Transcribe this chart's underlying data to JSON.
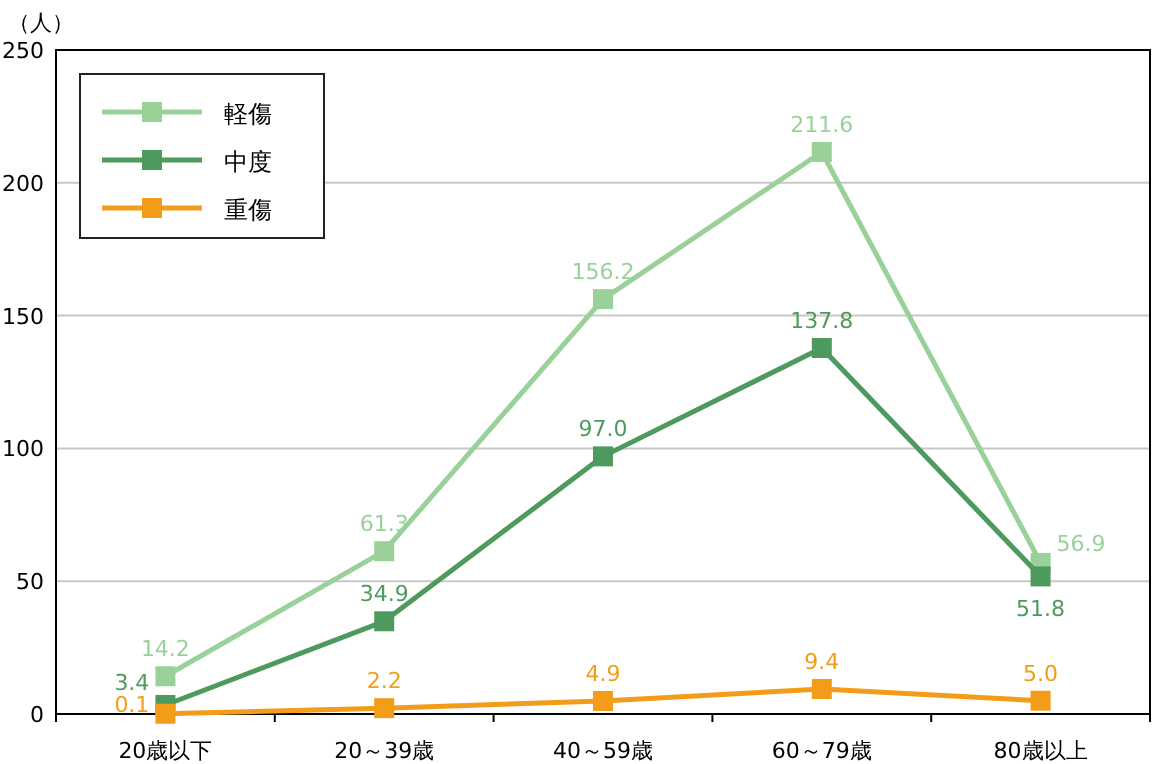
{
  "chart_data": {
    "type": "line",
    "ylabel": "（人）",
    "categories": [
      "20歳以下",
      "20～39歳",
      "40～59歳",
      "60～79歳",
      "80歳以上"
    ],
    "series": [
      {
        "name": "軽傷",
        "color": "#99d199",
        "values": [
          14.2,
          61.3,
          156.2,
          211.6,
          56.9
        ],
        "value_labels": [
          "14.2",
          "61.3",
          "156.2",
          "211.6",
          "56.9"
        ]
      },
      {
        "name": "中度",
        "color": "#4e9a5e",
        "values": [
          3.4,
          34.9,
          97.0,
          137.8,
          51.8
        ],
        "value_labels": [
          "3.4",
          "34.9",
          "97.0",
          "137.8",
          "51.8"
        ]
      },
      {
        "name": "重傷",
        "color": "#f39c1a",
        "values": [
          0.1,
          2.2,
          4.9,
          9.4,
          5.0
        ],
        "value_labels": [
          "0.1",
          "2.2",
          "4.9",
          "9.4",
          "5.0"
        ]
      }
    ],
    "ylim": [
      0,
      250
    ],
    "yticks": [
      0,
      50,
      100,
      150,
      200,
      250
    ],
    "grid": "y",
    "legend": "top left",
    "marker": "square",
    "line_style": "solid"
  }
}
